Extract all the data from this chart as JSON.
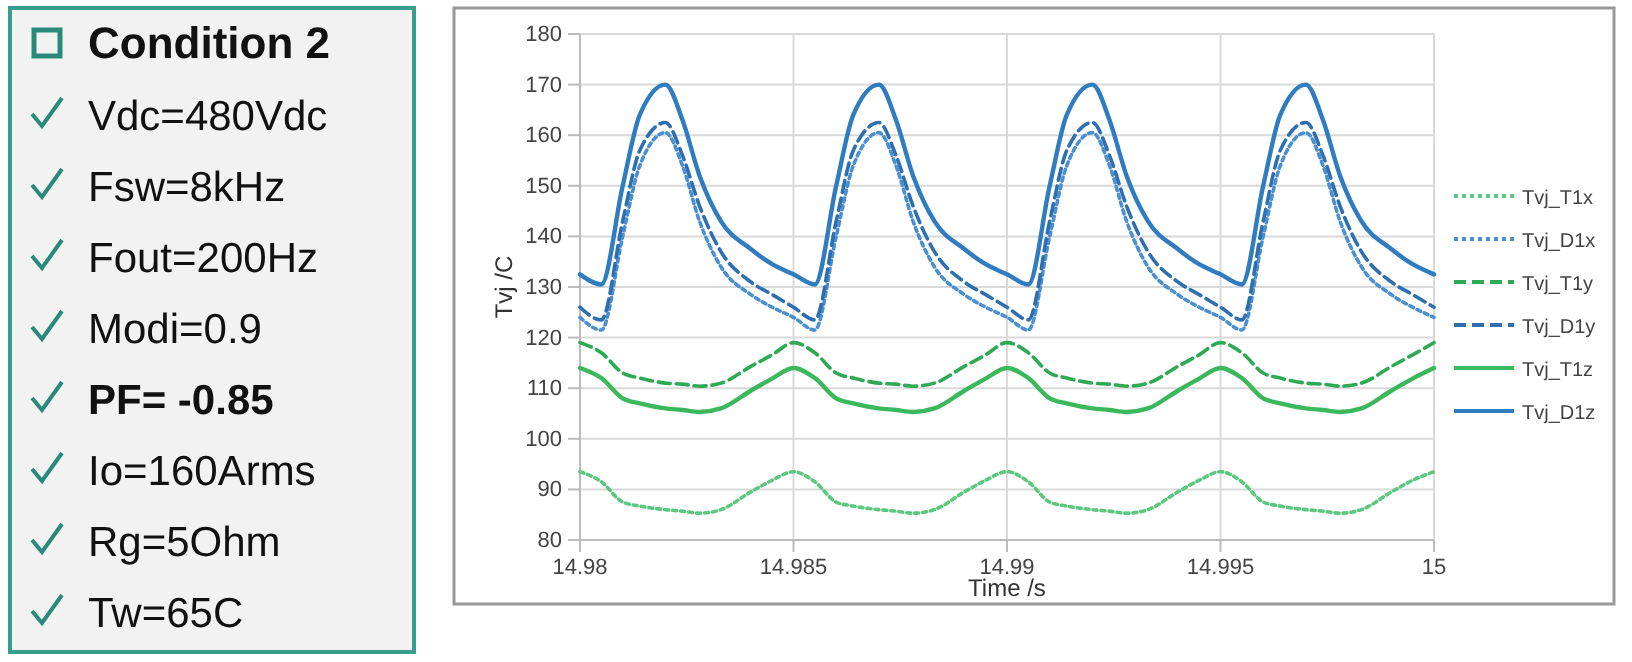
{
  "chart_data": [
    {
      "type": "other",
      "title": "Condition 2",
      "annotations": [
        "Vdc=480Vdc",
        "Fsw=8kHz",
        "Fout=200Hz",
        "Modi=0.9",
        "PF= -0.85",
        "Io=160Arms",
        "Rg=5Ohm",
        "Tw=65C"
      ]
    },
    {
      "type": "line",
      "xlabel": "Time /s",
      "ylabel": "Tvj /C",
      "xlim": [
        14.98,
        15
      ],
      "xticks": [
        14.98,
        14.985,
        14.99,
        14.995,
        15
      ],
      "ylim": [
        80,
        180
      ],
      "yticks": [
        80,
        90,
        100,
        110,
        120,
        130,
        140,
        150,
        160,
        170,
        180
      ],
      "grid": true,
      "legend": "right",
      "marker": "none",
      "x": [
        14.98,
        14.9805,
        14.981,
        14.9814,
        14.982,
        14.9824,
        14.9828,
        14.9833,
        14.984,
        14.9845,
        14.985,
        14.9855,
        14.986,
        14.9864,
        14.987,
        14.9874,
        14.9878,
        14.9883,
        14.989,
        14.9895,
        14.99,
        14.9905,
        14.991,
        14.9914,
        14.992,
        14.9924,
        14.9928,
        14.9933,
        14.994,
        14.9945,
        14.995,
        14.9955,
        14.996,
        14.9964,
        14.997,
        14.9974,
        14.9978,
        14.9983,
        14.999,
        14.9995,
        15
      ],
      "series": [
        {
          "name": "Tvj_T1x",
          "color": "#5cc77e",
          "line_style": "dotted",
          "values": [
            93.5,
            91.5,
            87.5,
            86.7,
            86,
            85.7,
            85.3,
            86,
            89.5,
            91.8,
            93.5,
            91.5,
            87.5,
            86.7,
            86,
            85.7,
            85.3,
            86,
            89.5,
            91.8,
            93.5,
            91.5,
            87.5,
            86.7,
            86,
            85.7,
            85.3,
            86,
            89.5,
            91.8,
            93.5,
            91.5,
            87.5,
            86.7,
            86,
            85.7,
            85.3,
            86,
            89.5,
            91.8,
            93.5
          ]
        },
        {
          "name": "Tvj_D1x",
          "color": "#4a8fd0",
          "line_style": "dotted",
          "values": [
            124,
            121.5,
            140,
            154,
            160.5,
            154,
            143,
            134,
            128.5,
            126,
            124,
            121.5,
            140,
            154,
            160.5,
            154,
            143,
            134,
            128.5,
            126,
            124,
            121.5,
            140,
            154,
            160.5,
            154,
            143,
            134,
            128.5,
            126,
            124,
            121.5,
            140,
            154,
            160.5,
            154,
            143,
            134,
            128.5,
            126,
            124
          ]
        },
        {
          "name": "Tvj_T1y",
          "color": "#2eaa55",
          "line_style": "dashed",
          "values": [
            119,
            117,
            113,
            112,
            111,
            110.8,
            110.4,
            111,
            114.3,
            116.6,
            119,
            117,
            113,
            112,
            111,
            110.8,
            110.4,
            111,
            114.3,
            116.6,
            119,
            117,
            113,
            112,
            111,
            110.8,
            110.4,
            111,
            114.3,
            116.6,
            119,
            117,
            113,
            112,
            111,
            110.8,
            110.4,
            111,
            114.3,
            116.6,
            119
          ]
        },
        {
          "name": "Tvj_D1y",
          "color": "#2e6fb0",
          "line_style": "dashed",
          "values": [
            126,
            123.5,
            143,
            157,
            162.5,
            156,
            146,
            137,
            131,
            128.5,
            126,
            123.5,
            143,
            157,
            162.5,
            156,
            146,
            137,
            131,
            128.5,
            126,
            123.5,
            143,
            157,
            162.5,
            156,
            146,
            137,
            131,
            128.5,
            126,
            123.5,
            143,
            157,
            162.5,
            156,
            146,
            137,
            131,
            128.5,
            126
          ]
        },
        {
          "name": "Tvj_T1z",
          "color": "#3cb85c",
          "line_style": "solid",
          "values": [
            114,
            112,
            108,
            107,
            106,
            105.7,
            105.3,
            106,
            109.5,
            111.9,
            114,
            112,
            108,
            107,
            106,
            105.7,
            105.3,
            106,
            109.5,
            111.9,
            114,
            112,
            108,
            107,
            106,
            105.7,
            105.3,
            106,
            109.5,
            111.9,
            114,
            112,
            108,
            107,
            106,
            105.7,
            105.3,
            106,
            109.5,
            111.9,
            114
          ]
        },
        {
          "name": "Tvj_D1z",
          "color": "#2f7cc0",
          "line_style": "solid",
          "values": [
            132.5,
            130.5,
            150,
            164,
            170,
            163,
            152,
            143,
            137.5,
            134.5,
            132.5,
            130.5,
            150,
            164,
            170,
            163,
            152,
            143,
            137.5,
            134.5,
            132.5,
            130.5,
            150,
            164,
            170,
            163,
            152,
            143,
            137.5,
            134.5,
            132.5,
            130.5,
            150,
            164,
            170,
            163,
            152,
            143,
            137.5,
            134.5,
            132.5
          ]
        }
      ]
    }
  ]
}
